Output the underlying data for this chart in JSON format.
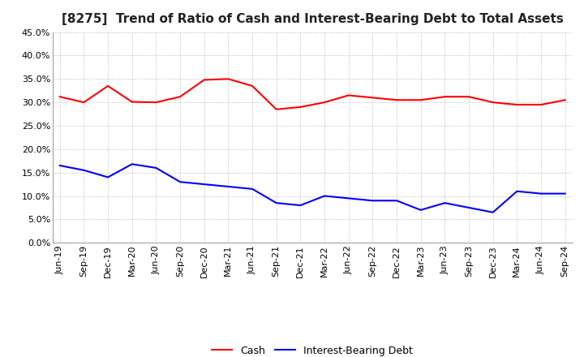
{
  "title": "[8275]  Trend of Ratio of Cash and Interest-Bearing Debt to Total Assets",
  "x_labels": [
    "Jun-19",
    "Sep-19",
    "Dec-19",
    "Mar-20",
    "Jun-20",
    "Sep-20",
    "Dec-20",
    "Mar-21",
    "Jun-21",
    "Sep-21",
    "Dec-21",
    "Mar-22",
    "Jun-22",
    "Sep-22",
    "Dec-22",
    "Mar-23",
    "Jun-23",
    "Sep-23",
    "Dec-23",
    "Mar-24",
    "Jun-24",
    "Sep-24"
  ],
  "cash": [
    31.2,
    30.0,
    33.5,
    30.1,
    30.0,
    31.2,
    34.8,
    35.0,
    33.5,
    28.5,
    29.0,
    30.0,
    31.5,
    31.0,
    30.5,
    30.5,
    31.2,
    31.2,
    30.0,
    29.5,
    29.5,
    30.5
  ],
  "interest_bearing_debt": [
    16.5,
    15.5,
    14.0,
    16.8,
    16.0,
    13.0,
    12.5,
    12.0,
    11.5,
    8.5,
    8.0,
    10.0,
    9.5,
    9.0,
    9.0,
    7.0,
    8.5,
    7.5,
    6.5,
    11.0,
    10.5,
    10.5
  ],
  "cash_color": "#ff0000",
  "debt_color": "#0000ff",
  "ylim": [
    0,
    45
  ],
  "yticks": [
    0,
    5,
    10,
    15,
    20,
    25,
    30,
    35,
    40,
    45
  ],
  "background_color": "#ffffff",
  "legend_cash": "Cash",
  "legend_debt": "Interest-Bearing Debt",
  "title_fontsize": 11,
  "axis_fontsize": 8,
  "legend_fontsize": 9,
  "line_width": 1.5
}
